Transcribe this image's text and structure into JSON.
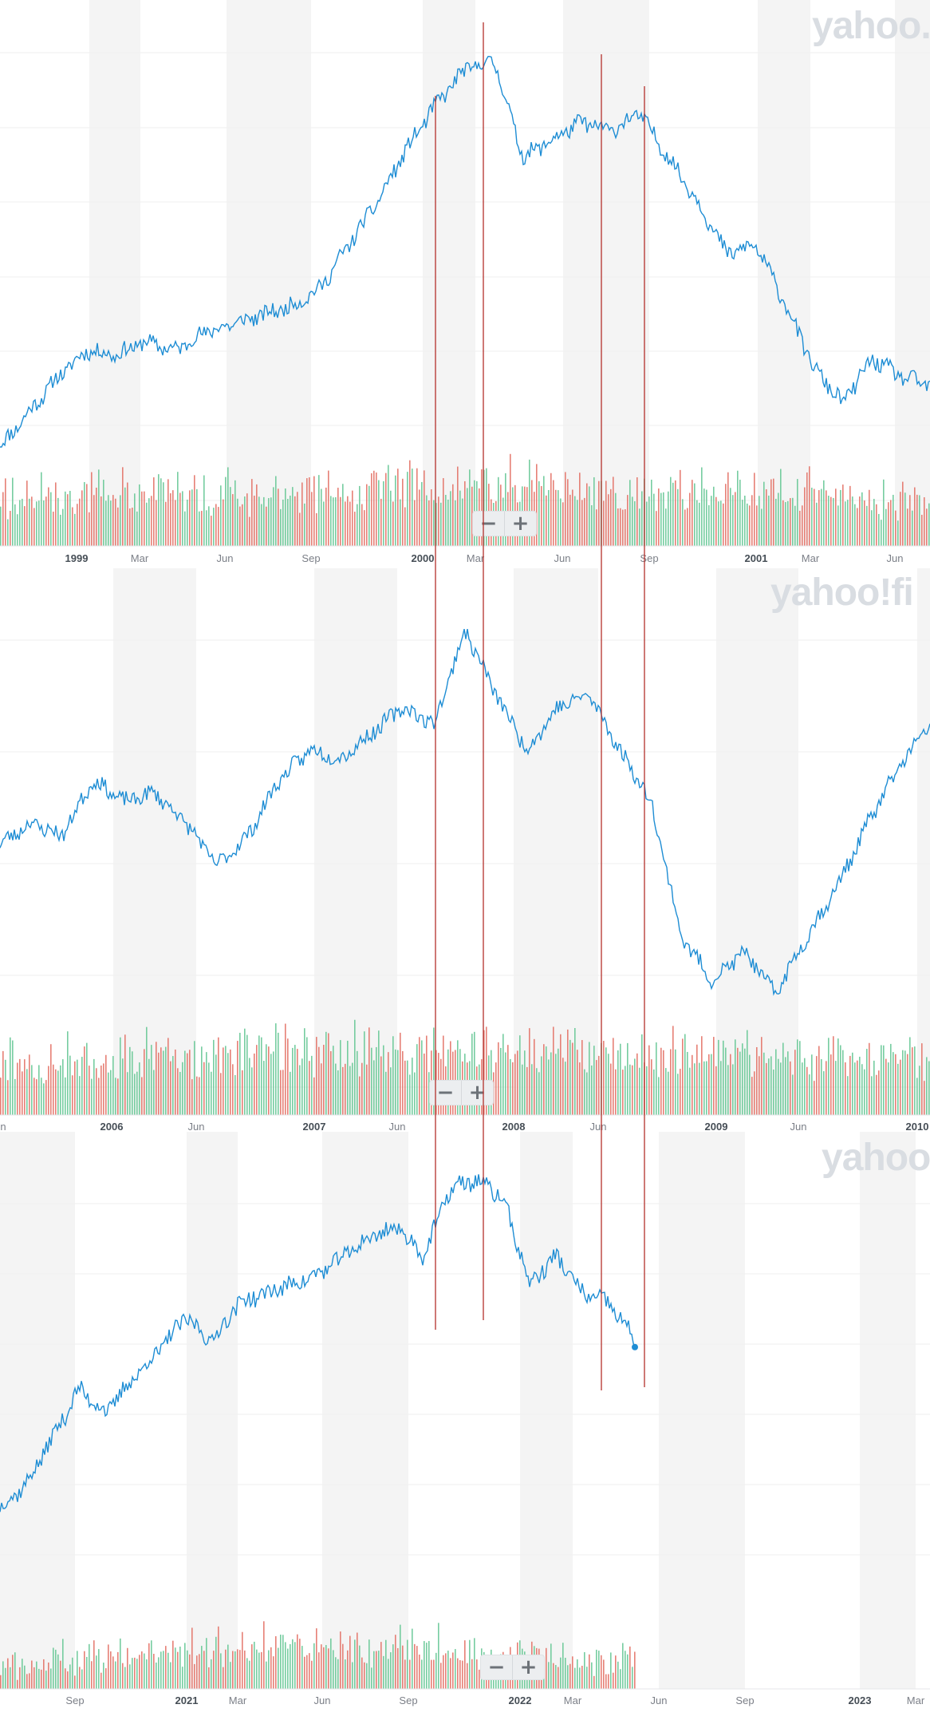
{
  "brand": {
    "watermark_1": "yahoo.",
    "watermark_2": "yahoo!fi",
    "watermark_3": "yahoo"
  },
  "colors": {
    "price_line": "#1e8dd4",
    "volume_up": "#5ec48f",
    "volume_down": "#e26a5e",
    "shade": "#f4f4f4",
    "gridline": "#efefef",
    "marker_line": "#b3302b"
  },
  "zoom": {
    "minus": "−",
    "plus": "+"
  },
  "chart_data": [
    {
      "type": "line",
      "x": [
        "1998-11",
        "1998-12",
        "1999-01",
        "1999-02",
        "1999-03",
        "1999-04",
        "1999-05",
        "1999-06",
        "1999-07",
        "1999-08",
        "1999-09",
        "1999-10",
        "1999-11",
        "1999-12",
        "2000-01",
        "2000-02",
        "2000-03",
        "2000-04",
        "2000-05",
        "2000-06",
        "2000-07",
        "2000-08",
        "2000-09",
        "2000-10",
        "2000-11",
        "2000-12",
        "2001-01",
        "2001-02",
        "2001-03",
        "2001-04",
        "2001-05",
        "2001-06",
        "2001-07"
      ],
      "series": [
        {
          "values": [
            0.0,
            0.08,
            0.16,
            0.22,
            0.21,
            0.24,
            0.22,
            0.26,
            0.28,
            0.3,
            0.32,
            0.36,
            0.46,
            0.56,
            0.68,
            0.78,
            0.86,
            0.88,
            0.66,
            0.7,
            0.74,
            0.72,
            0.76,
            0.66,
            0.56,
            0.44,
            0.46,
            0.33,
            0.18,
            0.1,
            0.2,
            0.16,
            0.14
          ]
        }
      ],
      "x_ticks": [
        "1999",
        "Mar",
        "Jun",
        "Sep",
        "2000",
        "Mar",
        "Jun",
        "Sep",
        "2001",
        "Mar",
        "Jun"
      ],
      "ylim": [
        0,
        1
      ],
      "volume": true
    },
    {
      "type": "line",
      "x": [
        "2005-05",
        "2005-07",
        "2005-09",
        "2005-11",
        "2006-01",
        "2006-03",
        "2006-05",
        "2006-07",
        "2006-09",
        "2006-11",
        "2007-01",
        "2007-03",
        "2007-05",
        "2007-07",
        "2007-09",
        "2007-10",
        "2007-12",
        "2008-02",
        "2008-04",
        "2008-05",
        "2008-07",
        "2008-09",
        "2008-10",
        "2008-11",
        "2009-01",
        "2009-03",
        "2009-05",
        "2009-07",
        "2009-09",
        "2009-11",
        "2010-01"
      ],
      "series": [
        {
          "values": [
            0.4,
            0.45,
            0.42,
            0.55,
            0.5,
            0.52,
            0.45,
            0.35,
            0.42,
            0.55,
            0.62,
            0.6,
            0.66,
            0.72,
            0.68,
            0.9,
            0.75,
            0.62,
            0.72,
            0.75,
            0.62,
            0.5,
            0.18,
            0.08,
            0.15,
            0.05,
            0.18,
            0.3,
            0.45,
            0.58,
            0.68
          ]
        }
      ],
      "x_ticks": [
        "n",
        "2006",
        "Jun",
        "2007",
        "Jun",
        "2008",
        "Jun",
        "2009",
        "Jun",
        "2010"
      ],
      "ylim": [
        0,
        1
      ],
      "volume": true
    },
    {
      "type": "line",
      "x": [
        "2020-06",
        "2020-07",
        "2020-08",
        "2020-09",
        "2020-10",
        "2020-11",
        "2020-12",
        "2021-01",
        "2021-02",
        "2021-03",
        "2021-04",
        "2021-05",
        "2021-06",
        "2021-07",
        "2021-08",
        "2021-09",
        "2021-10",
        "2021-11",
        "2021-12",
        "2022-01",
        "2022-02",
        "2022-03",
        "2022-04",
        "2022-05",
        "2022-06"
      ],
      "series": [
        {
          "values": [
            0.25,
            0.3,
            0.4,
            0.5,
            0.45,
            0.52,
            0.58,
            0.65,
            0.6,
            0.68,
            0.7,
            0.72,
            0.74,
            0.78,
            0.82,
            0.84,
            0.78,
            0.92,
            0.94,
            0.9,
            0.72,
            0.78,
            0.7,
            0.68,
            0.6
          ]
        }
      ],
      "x_ticks": [
        "Sep",
        "2021",
        "Mar",
        "Jun",
        "Sep",
        "2022",
        "Mar",
        "Jun",
        "Sep",
        "2023",
        "Mar"
      ],
      "ylim": [
        0,
        1
      ],
      "volume": true
    }
  ]
}
